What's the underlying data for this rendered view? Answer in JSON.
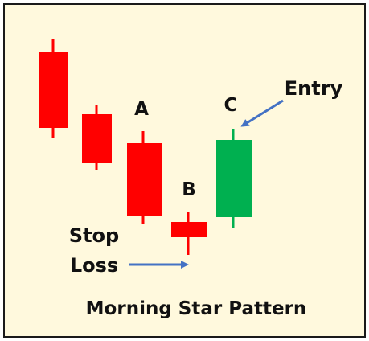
{
  "title": "Morning Star Pattern",
  "labels": {
    "a": "A",
    "b": "B",
    "c": "C",
    "entry": "Entry",
    "stop_line1": "Stop",
    "stop_line2": "Loss"
  },
  "colors": {
    "background": "#fff9dd",
    "border": "#1a1a1a",
    "bearish": "#ff0000",
    "bullish": "#00b050",
    "arrow": "#4472c4"
  },
  "candles": [
    {
      "name": "candle-1",
      "direction": "bearish"
    },
    {
      "name": "candle-2",
      "direction": "bearish"
    },
    {
      "name": "candle-a",
      "direction": "bearish"
    },
    {
      "name": "candle-b",
      "direction": "bearish"
    },
    {
      "name": "candle-c",
      "direction": "bullish"
    }
  ]
}
